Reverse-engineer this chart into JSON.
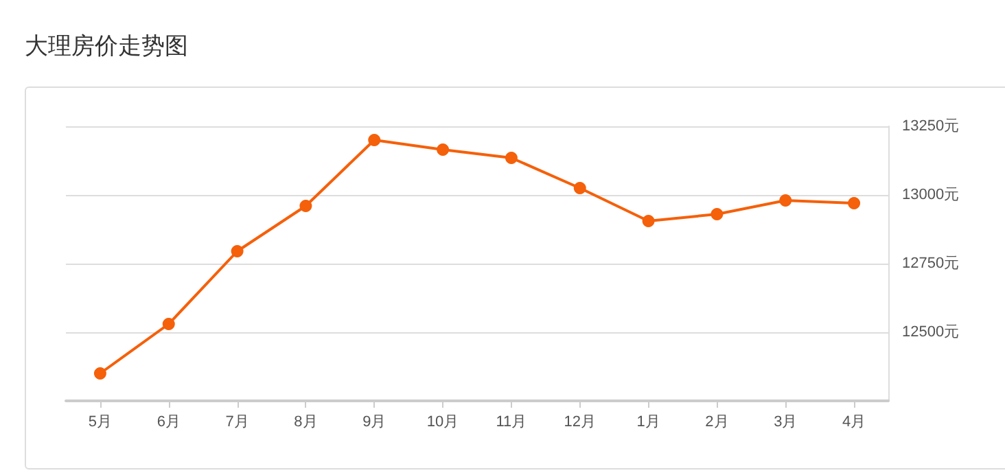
{
  "chart_data": {
    "type": "line",
    "title": "大理房价走势图",
    "categories": [
      "5月",
      "6月",
      "7月",
      "8月",
      "9月",
      "10月",
      "11月",
      "12月",
      "1月",
      "2月",
      "3月",
      "4月"
    ],
    "series": [
      {
        "color": "#f5600a",
        "values": [
          12350,
          12530,
          12795,
          12960,
          13200,
          13165,
          13135,
          13025,
          12905,
          12930,
          12980,
          12970
        ]
      }
    ],
    "ylim": [
      12250,
      13250
    ],
    "yticks": [
      {
        "value": 12500,
        "label": "12500元"
      },
      {
        "value": 12750,
        "label": "12750元"
      },
      {
        "value": 13000,
        "label": "13000元"
      },
      {
        "value": 13250,
        "label": "13250元"
      }
    ],
    "grid": "y",
    "marker": "circle",
    "line_style": "solid"
  }
}
